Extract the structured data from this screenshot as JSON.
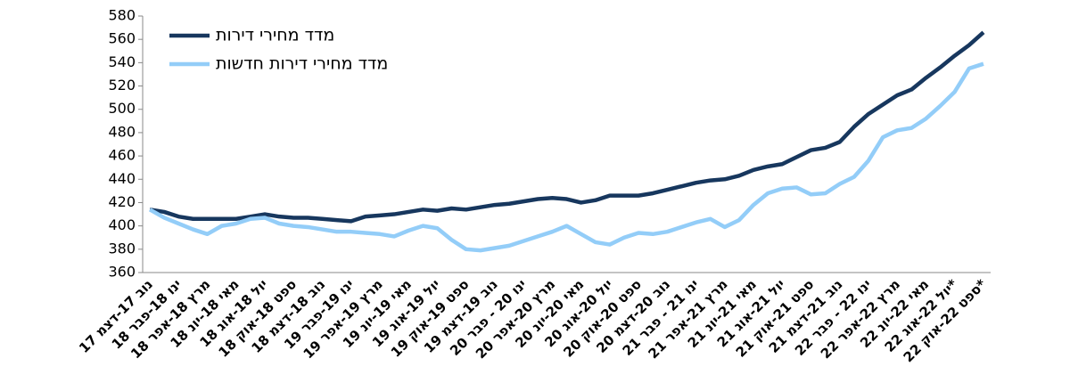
{
  "chart_data": {
    "type": "line",
    "categories": [
      "נוב 17-דצמ 17",
      null,
      "ינו 18-פבר 18",
      null,
      "מרץ 18-אפר 18",
      null,
      "מאי 18-יונ 18",
      null,
      "יול 18-אוג 18",
      null,
      "ספט 18-אוק 18",
      null,
      "נוב 18-דצמ 18",
      null,
      "ינו 19-פבר 19",
      null,
      "מרץ 19-אפר 19",
      null,
      "מאי 19-יונ 19",
      null,
      "יול 19-אוג 19",
      null,
      "ספט 19-אוק 19",
      null,
      "נוב 19-דצמ 19",
      null,
      "ינו 20 - פבר 20",
      null,
      "מרץ 20-אפר 20",
      null,
      "מאי 20-יונ 20",
      null,
      "יול 20-אוג 20",
      null,
      "ספט 20-אוק 20",
      null,
      "נוב 20-דצמ 20",
      null,
      "ינו 21 - פבר 21",
      null,
      "מרץ 21-אפר 21",
      null,
      "מאי 21-יונ 21",
      null,
      "יול 21-אוג 21",
      null,
      "ספט 21-אוק 21",
      null,
      "נוב 21-דצמ 21",
      null,
      "ינו 22 - פבר 22",
      null,
      "מרץ 22-אפר 22",
      null,
      "מאי 22-יונ 22",
      null,
      "יול 22-אוג 22*",
      null,
      "ספט 22-אוק 22*"
    ],
    "series": [
      {
        "name": "מדד מחירי דירות",
        "color": "#17375e",
        "values": [
          414,
          412,
          408,
          406,
          406,
          406,
          406,
          408,
          410,
          408,
          407,
          407,
          406,
          405,
          404,
          408,
          409,
          410,
          412,
          414,
          413,
          415,
          414,
          416,
          418,
          419,
          421,
          423,
          424,
          423,
          420,
          422,
          426,
          426,
          426,
          428,
          431,
          434,
          437,
          439,
          440,
          443,
          448,
          451,
          453,
          459,
          465,
          467,
          472,
          485,
          496,
          504,
          512,
          517,
          527,
          536,
          546,
          555,
          566
        ]
      },
      {
        "name": "מדד מחירי דירות חדשות",
        "color": "#93cdf8",
        "values": [
          414,
          407,
          402,
          397,
          393,
          400,
          402,
          406,
          407,
          402,
          400,
          399,
          397,
          395,
          395,
          394,
          393,
          391,
          396,
          400,
          398,
          388,
          380,
          379,
          381,
          383,
          387,
          391,
          395,
          400,
          393,
          386,
          384,
          390,
          394,
          393,
          395,
          399,
          403,
          406,
          399,
          405,
          418,
          428,
          432,
          433,
          427,
          428,
          436,
          442,
          456,
          476,
          482,
          484,
          492,
          503,
          515,
          535,
          539
        ]
      }
    ],
    "ylim": [
      360,
      580
    ],
    "yticks": [
      360,
      380,
      400,
      420,
      440,
      460,
      480,
      500,
      520,
      540,
      560,
      580
    ],
    "grid": false,
    "legend": "upper left"
  }
}
